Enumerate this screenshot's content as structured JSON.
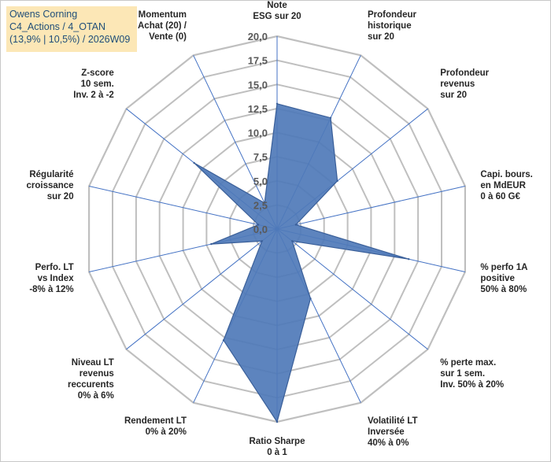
{
  "title_box": {
    "line1": "Owens Corning",
    "line2": "C4_Actions / 4_OTAN",
    "line3": "(13,9% | 10,5%) / 2026W09"
  },
  "colors": {
    "grid": "#bfbfbf",
    "spoke": "#4472c4",
    "fill": "#4f79b8",
    "stroke": "#3a5f99",
    "tick": "#595959"
  },
  "chart_data": {
    "type": "radar",
    "title": "Owens Corning C4_Actions / 4_OTAN (13,9% | 10,5%) / 2026W09",
    "rmin": 0,
    "rmax": 20,
    "ticks": [
      "0,0",
      "2,5",
      "5,0",
      "7,5",
      "10,0",
      "12,5",
      "15,0",
      "17,5",
      "20,0"
    ],
    "axes": [
      {
        "lines": [
          "Note",
          "ESG sur 20"
        ],
        "value": 13.0
      },
      {
        "lines": [
          "Profondeur",
          "historique",
          "sur 20"
        ],
        "value": 12.8
      },
      {
        "lines": [
          "Profondeur",
          "revenus",
          "sur 20"
        ],
        "value": 8.0
      },
      {
        "lines": [
          "Capi. bours.",
          "en MdEUR",
          "0 à 60 G€"
        ],
        "value": 2.0
      },
      {
        "lines": [
          "% perfo 1A",
          "positive",
          "50% à 80%"
        ],
        "value": 14.0
      },
      {
        "lines": [
          "% perte max.",
          "sur 1 sem.",
          "Inv. 50% à 20%"
        ],
        "value": 2.0
      },
      {
        "lines": [
          "Volatilité LT",
          "Inversée",
          "40% à 0%"
        ],
        "value": 8.0
      },
      {
        "lines": [
          "Ratio Sharpe",
          "0 à 1"
        ],
        "value": 20.0
      },
      {
        "lines": [
          "Rendement LT",
          "0% à 20%"
        ],
        "value": 12.8
      },
      {
        "lines": [
          "Niveau LT",
          "revenus",
          "reccurents",
          "0% à 6%"
        ],
        "value": 2.0
      },
      {
        "lines": [
          "Perfo. LT",
          "vs Index",
          "-8% à 12%"
        ],
        "value": 7.0
      },
      {
        "lines": [
          "Régularité",
          "croissance",
          "sur 20"
        ],
        "value": 2.0
      },
      {
        "lines": [
          "Z-score",
          "10 sem.",
          "Inv. 2 à -2"
        ],
        "value": 11.0
      },
      {
        "lines": [
          "Momentum",
          "Achat (20) /",
          "Vente (0)"
        ],
        "value": 3.0
      }
    ]
  }
}
